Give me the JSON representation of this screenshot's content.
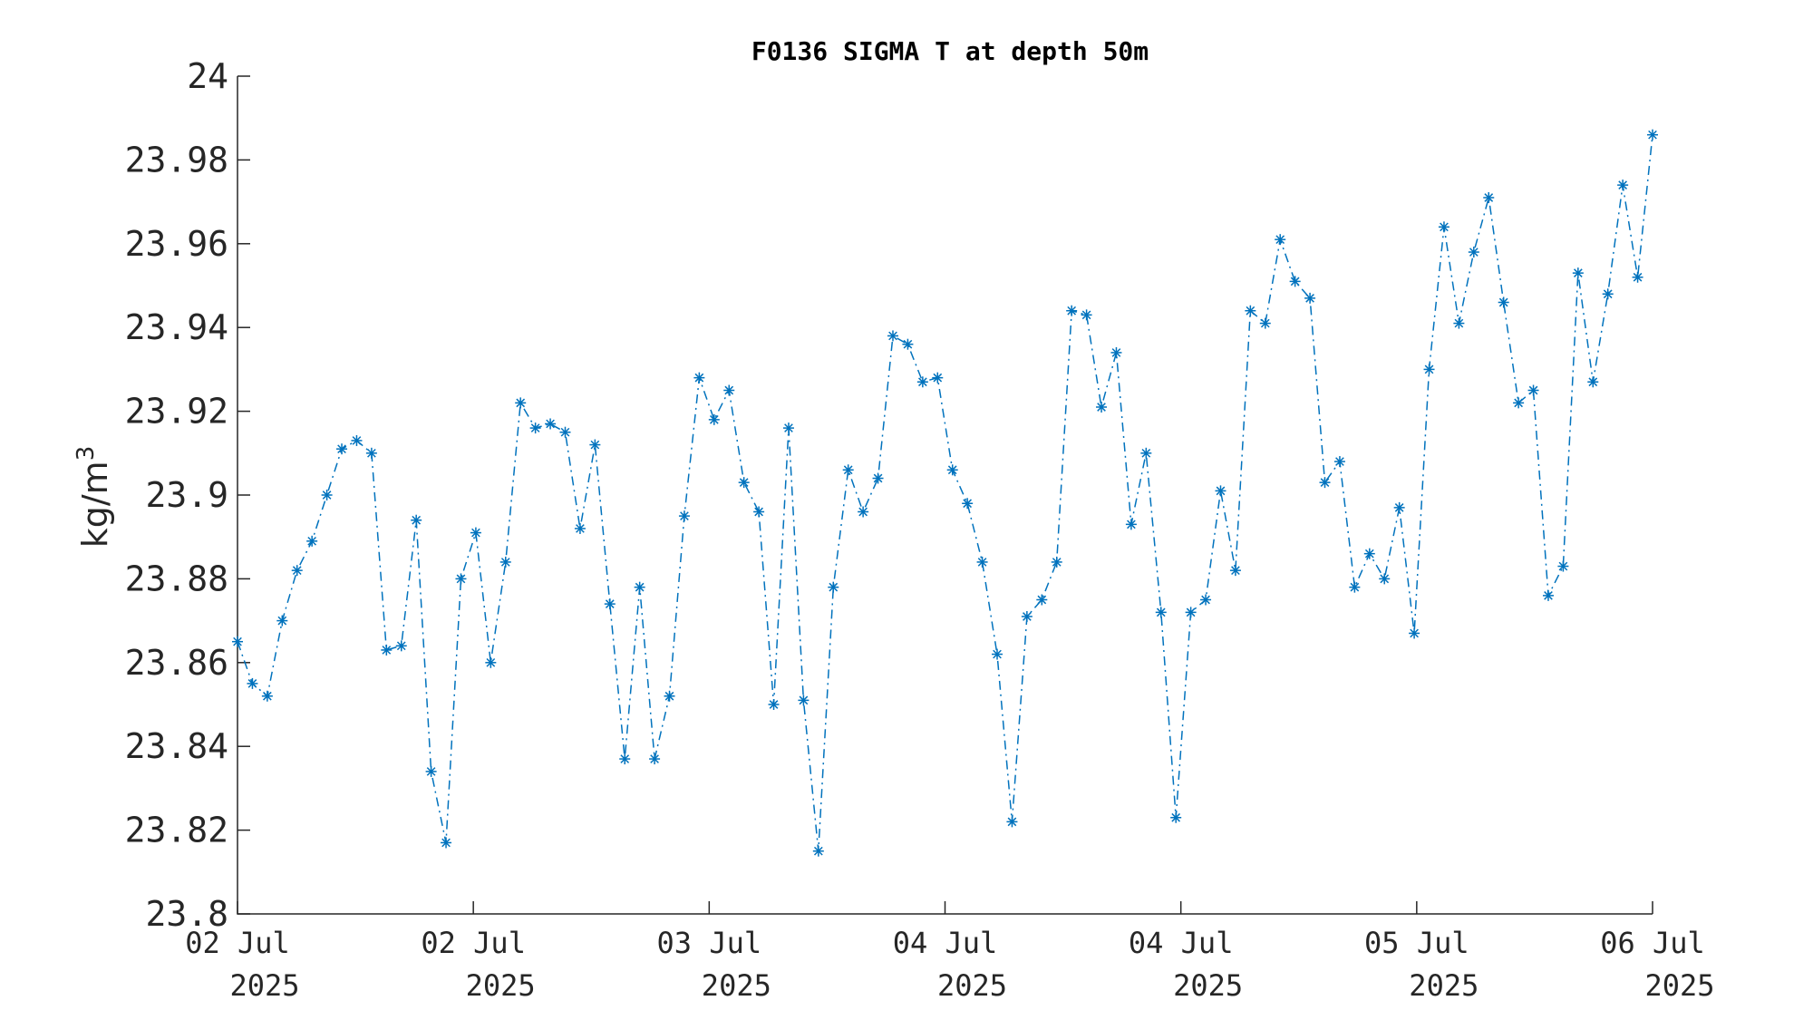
{
  "chart_data": {
    "type": "line",
    "title": "F0136 SIGMA T at depth 50m",
    "ylabel": "kg/m",
    "ylabel_superscript": "3",
    "xlabel": "",
    "ylim": [
      23.8,
      24.0
    ],
    "yticks": [
      "23.8",
      "23.82",
      "23.84",
      "23.86",
      "23.88",
      "23.9",
      "23.92",
      "23.94",
      "23.96",
      "23.98",
      "24"
    ],
    "xticks": [
      {
        "line1": "02 Jul",
        "line2": "2025"
      },
      {
        "line1": "02 Jul",
        "line2": "2025"
      },
      {
        "line1": "03 Jul",
        "line2": "2025"
      },
      {
        "line1": "04 Jul",
        "line2": "2025"
      },
      {
        "line1": "04 Jul",
        "line2": "2025"
      },
      {
        "line1": "05 Jul",
        "line2": "2025"
      },
      {
        "line1": "06 Jul",
        "line2": "2025"
      }
    ],
    "grid": false,
    "marker": "asterisk",
    "line_style": "dash-dot",
    "color": "#0072BD",
    "series": [
      {
        "values": [
          23.865,
          23.855,
          23.852,
          23.87,
          23.882,
          23.889,
          23.9,
          23.911,
          23.913,
          23.91,
          23.863,
          23.864,
          23.894,
          23.834,
          23.817,
          23.88,
          23.891,
          23.86,
          23.884,
          23.922,
          23.916,
          23.917,
          23.915,
          23.892,
          23.912,
          23.874,
          23.837,
          23.878,
          23.837,
          23.852,
          23.895,
          23.928,
          23.918,
          23.925,
          23.903,
          23.896,
          23.85,
          23.916,
          23.851,
          23.815,
          23.878,
          23.906,
          23.896,
          23.904,
          23.938,
          23.936,
          23.927,
          23.928,
          23.906,
          23.898,
          23.884,
          23.862,
          23.822,
          23.871,
          23.875,
          23.884,
          23.944,
          23.943,
          23.921,
          23.934,
          23.893,
          23.91,
          23.872,
          23.823,
          23.872,
          23.875,
          23.901,
          23.882,
          23.944,
          23.941,
          23.961,
          23.951,
          23.947,
          23.903,
          23.908,
          23.878,
          23.886,
          23.88,
          23.897,
          23.867,
          23.93,
          23.964,
          23.941,
          23.958,
          23.971,
          23.946,
          23.922,
          23.925,
          23.876,
          23.883,
          23.953,
          23.927,
          23.948,
          23.974,
          23.952,
          23.986
        ]
      }
    ]
  }
}
